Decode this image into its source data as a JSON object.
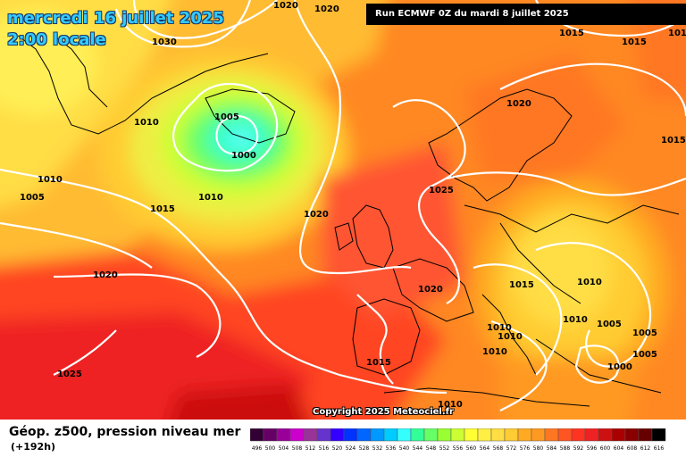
{
  "header": {
    "date": "mercredi 16 juillet 2025",
    "time": "2:00 locale",
    "run": "Run ECMWF 0Z du mardi 8 juillet 2025"
  },
  "footer": {
    "title": "Géop. z500, pression niveau mer",
    "lead": "(+192h)",
    "copyright": "Copyright 2025 Meteociel.fr"
  },
  "isobar_labels": [
    "1020",
    "1020",
    "1030",
    "1015",
    "1015",
    "1015",
    "1010",
    "1005",
    "1000",
    "1010",
    "1005",
    "1010",
    "1015",
    "1020",
    "1025",
    "1020",
    "1020",
    "1020",
    "1010",
    "1015",
    "1010",
    "1010",
    "1010",
    "1015",
    "1010",
    "1005",
    "1005",
    "1000",
    "1010",
    "1025",
    "1015",
    "1005"
  ],
  "scale": {
    "values": [
      "496",
      "500",
      "504",
      "508",
      "512",
      "516",
      "520",
      "524",
      "528",
      "532",
      "536",
      "540",
      "544",
      "548",
      "552",
      "556",
      "560",
      "564",
      "568",
      "572",
      "576",
      "580",
      "584",
      "588",
      "592",
      "596",
      "600",
      "604",
      "608",
      "612",
      "616"
    ],
    "colors": [
      "#330033",
      "#660066",
      "#990099",
      "#cc00cc",
      "#993399",
      "#6633cc",
      "#3300ff",
      "#0033ff",
      "#0066ff",
      "#0099ff",
      "#00ccff",
      "#33ffff",
      "#33ff99",
      "#66ff66",
      "#99ff33",
      "#ccff33",
      "#ffff33",
      "#ffee44",
      "#ffdd44",
      "#ffcc33",
      "#ffaa22",
      "#ff9922",
      "#ff7722",
      "#ff5522",
      "#ff3322",
      "#ee2222",
      "#cc1111",
      "#aa0000",
      "#880000",
      "#660000",
      "#000000"
    ]
  },
  "colors": {
    "isobar": "#ffffff",
    "title_text": "#33ccff"
  }
}
